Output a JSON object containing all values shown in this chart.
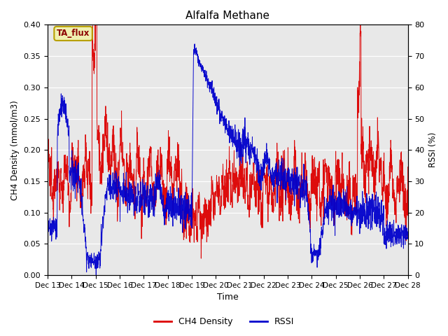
{
  "title": "Alfalfa Methane",
  "xlabel": "Time",
  "ylabel_left": "CH4 Density (mmol/m3)",
  "ylabel_right": "RSSI (%)",
  "ylim_left": [
    0.0,
    0.4
  ],
  "ylim_right": [
    0,
    80
  ],
  "yticks_left": [
    0.0,
    0.05,
    0.1,
    0.15,
    0.2,
    0.25,
    0.3,
    0.35,
    0.4
  ],
  "yticks_right": [
    0,
    10,
    20,
    30,
    40,
    50,
    60,
    70,
    80
  ],
  "bg_color": "#e8e8e8",
  "annotation_text": "TA_flux",
  "annotation_color": "#8B0000",
  "annotation_bg": "#f0f0b0",
  "annotation_border": "#b8a000",
  "ch4_color": "#dd0000",
  "rssi_color": "#0000cc",
  "legend_ch4": "CH4 Density",
  "legend_rssi": "RSSI",
  "x_start": 13,
  "x_end": 28,
  "x_ticks": [
    13,
    14,
    15,
    16,
    17,
    18,
    19,
    20,
    21,
    22,
    23,
    24,
    25,
    26,
    27,
    28
  ],
  "x_tick_labels": [
    "Dec 13",
    "Dec 14",
    "Dec 15",
    "Dec 16",
    "Dec 17",
    "Dec 18",
    "Dec 19",
    "Dec 20",
    "Dec 21",
    "Dec 22",
    "Dec 23",
    "Dec 24",
    "Dec 25",
    "Dec 26",
    "Dec 27",
    "Dec 28"
  ],
  "grid_color": "#ffffff",
  "fig_width": 6.4,
  "fig_height": 4.8,
  "dpi": 100
}
